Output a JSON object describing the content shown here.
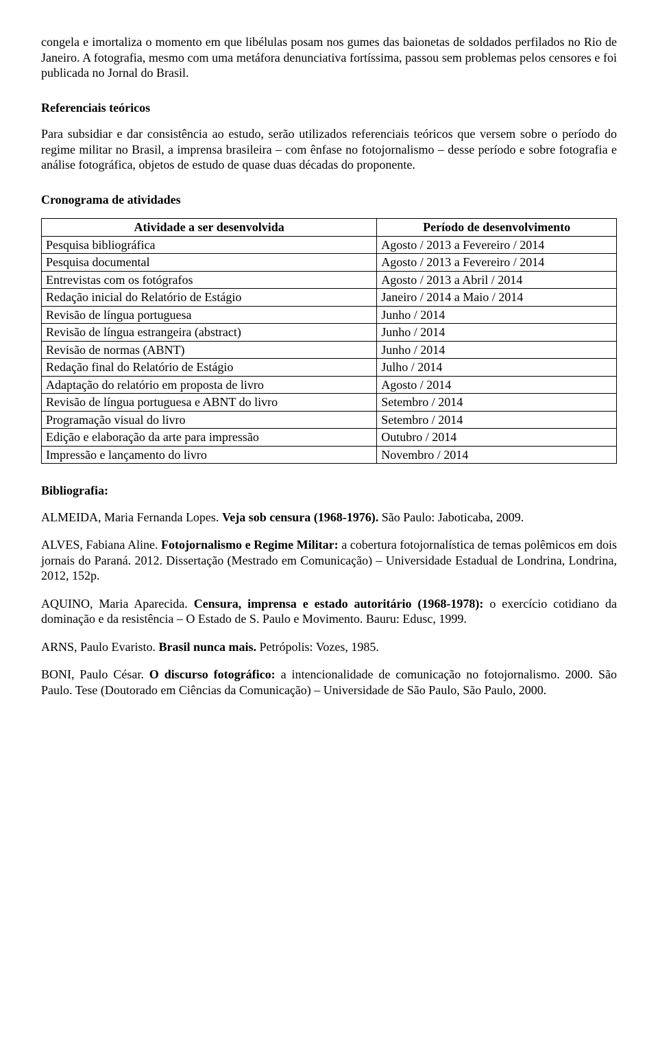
{
  "intro_paragraph": "congela e imortaliza o momento em que libélulas posam nos gumes das baionetas de soldados perfilados no Rio de Janeiro. A fotografia, mesmo com uma metáfora denunciativa fortíssima, passou sem problemas pelos censores e foi publicada no Jornal do Brasil.",
  "section_referenciais": {
    "heading": "Referenciais teóricos",
    "paragraph": "Para subsidiar e dar consistência ao estudo, serão utilizados referenciais teóricos que versem sobre o período do regime militar no Brasil, a imprensa brasileira – com ênfase no fotojornalismo – desse período e sobre fotografia e análise fotográfica, objetos de estudo de quase duas décadas do proponente."
  },
  "section_cronograma": {
    "heading": "Cronograma de atividades",
    "col1": "Atividade a ser desenvolvida",
    "col2": "Período de desenvolvimento",
    "rows": [
      {
        "a": "Pesquisa bibliográfica",
        "b": "Agosto / 2013 a Fevereiro / 2014"
      },
      {
        "a": "Pesquisa documental",
        "b": "Agosto / 2013 a Fevereiro / 2014"
      },
      {
        "a": "Entrevistas com os fotógrafos",
        "b": "Agosto / 2013 a Abril / 2014"
      },
      {
        "a": "Redação inicial do Relatório de Estágio",
        "b": "Janeiro / 2014 a Maio / 2014"
      },
      {
        "a": "Revisão de língua portuguesa",
        "b": "Junho / 2014"
      },
      {
        "a": "Revisão de língua estrangeira (abstract)",
        "b": "Junho / 2014"
      },
      {
        "a": "Revisão de normas (ABNT)",
        "b": "Junho / 2014"
      },
      {
        "a": "Redação final do Relatório de Estágio",
        "b": "Julho / 2014"
      },
      {
        "a": "Adaptação do relatório em proposta de livro",
        "b": "Agosto / 2014"
      },
      {
        "a": "Revisão de língua portuguesa e ABNT do livro",
        "b": "Setembro / 2014"
      },
      {
        "a": "Programação visual do livro",
        "b": "Setembro / 2014"
      },
      {
        "a": "Edição e elaboração da arte para impressão",
        "b": "Outubro / 2014"
      },
      {
        "a": "Impressão e lançamento do livro",
        "b": "Novembro / 2014"
      }
    ]
  },
  "section_biblio": {
    "heading": "Bibliografia:",
    "entries": [
      {
        "pre": "ALMEIDA, Maria Fernanda Lopes. ",
        "bold": "Veja sob censura (1968-1976).",
        "post": " São Paulo: Jaboticaba, 2009."
      },
      {
        "pre": "ALVES, Fabiana Aline. ",
        "bold": "Fotojornalismo e Regime Militar:",
        "post": " a cobertura fotojornalística de temas polêmicos em dois jornais do Paraná. 2012. Dissertação (Mestrado em Comunicação) – Universidade Estadual de Londrina, Londrina, 2012, 152p."
      },
      {
        "pre": "AQUINO, Maria Aparecida. ",
        "bold": "Censura, imprensa e estado autoritário (1968-1978):",
        "post": " o exercício cotidiano da dominação e da resistência – O Estado de S. Paulo e Movimento. Bauru: Edusc, 1999."
      },
      {
        "pre": "ARNS, Paulo Evaristo. ",
        "bold": "Brasil nunca mais.",
        "post": " Petrópolis: Vozes, 1985."
      },
      {
        "pre": "BONI, Paulo César. ",
        "bold": "O discurso fotográfico:",
        "post": " a intencionalidade de comunicação no fotojornalismo. 2000. São Paulo. Tese (Doutorado em Ciências da Comunicação) – Universidade de São Paulo, São Paulo, 2000."
      }
    ]
  }
}
